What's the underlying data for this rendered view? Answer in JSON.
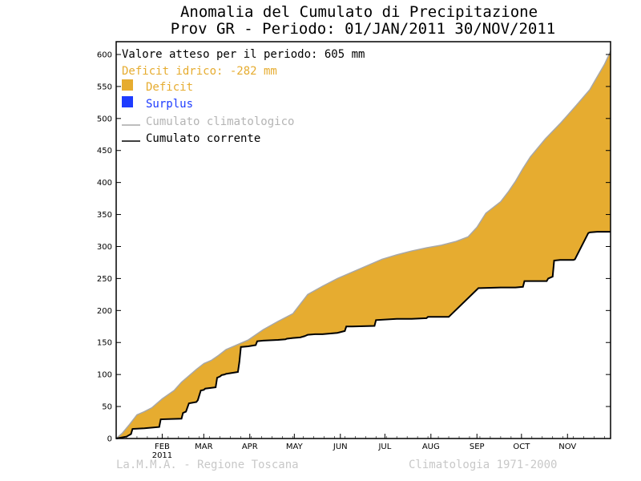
{
  "chart_data": {
    "type": "area",
    "title": "Anomalia del Cumulato di Precipitazione",
    "subtitle": "Prov GR - Periodo: 01/JAN/2011 30/NOV/2011",
    "legend": {
      "expected": "Valore atteso per il periodo: 605 mm",
      "deficit_text": "Deficit idrico: -282 mm",
      "deficit_label": "Deficit",
      "surplus_label": "Surplus",
      "climatological_label": "Cumulato climatologico",
      "current_label": "Cumulato corrente",
      "placement": "top-left"
    },
    "ylim": [
      0,
      620
    ],
    "yticks": [
      0,
      50,
      100,
      150,
      200,
      250,
      300,
      350,
      400,
      450,
      500,
      550,
      600
    ],
    "xlim": [
      1,
      334
    ],
    "xticks": [
      {
        "day": 32,
        "label": "FEB"
      },
      {
        "day": 60,
        "label": "MAR"
      },
      {
        "day": 91,
        "label": "APR"
      },
      {
        "day": 121,
        "label": "MAY"
      },
      {
        "day": 152,
        "label": "JUN"
      },
      {
        "day": 182,
        "label": "JUL"
      },
      {
        "day": 213,
        "label": "AUG"
      },
      {
        "day": 244,
        "label": "SEP"
      },
      {
        "day": 274,
        "label": "OCT"
      },
      {
        "day": 305,
        "label": "NOV"
      }
    ],
    "year_label": "2011",
    "series": [
      {
        "name": "Cumulato climatologico",
        "x": [
          1,
          5,
          10,
          15,
          20,
          25,
          32,
          40,
          45,
          50,
          55,
          60,
          65,
          70,
          75,
          80,
          82,
          90,
          95,
          100,
          110,
          120,
          125,
          130,
          140,
          150,
          160,
          170,
          180,
          190,
          200,
          210,
          220,
          230,
          238,
          244,
          250,
          260,
          265,
          270,
          275,
          280,
          290,
          300,
          305,
          310,
          320,
          325,
          330,
          334
        ],
        "y": [
          0,
          8,
          22,
          37,
          42,
          48,
          62,
          75,
          88,
          98,
          108,
          117,
          122,
          130,
          139,
          144,
          146,
          154,
          162,
          170,
          183,
          195,
          210,
          225,
          238,
          250,
          260,
          270,
          280,
          287,
          293,
          298,
          302,
          308,
          315,
          330,
          352,
          370,
          385,
          402,
          422,
          440,
          468,
          492,
          505,
          518,
          545,
          565,
          585,
          605
        ]
      },
      {
        "name": "Cumulato corrente",
        "x": [
          1,
          8,
          11,
          12,
          20,
          30,
          31,
          45,
          46,
          48,
          50,
          55,
          56,
          58,
          60,
          61,
          68,
          69,
          71,
          72,
          74,
          75,
          83,
          84,
          85,
          90,
          95,
          96,
          100,
          110,
          115,
          116,
          120,
          125,
          128,
          130,
          135,
          140,
          150,
          155,
          156,
          160,
          175,
          176,
          190,
          200,
          210,
          211,
          225,
          245,
          246,
          260,
          270,
          275,
          276,
          291,
          292,
          295,
          296,
          300,
          309,
          310,
          319,
          320,
          325,
          334
        ],
        "y": [
          0,
          3,
          7,
          15,
          16,
          18,
          30,
          31,
          40,
          42,
          55,
          57,
          60,
          75,
          76,
          78,
          80,
          95,
          97,
          99,
          100,
          101,
          104,
          120,
          143,
          144,
          146,
          152,
          153,
          154,
          155,
          156,
          157,
          158,
          160,
          162,
          163,
          163,
          165,
          168,
          175,
          175,
          176,
          185,
          187,
          187,
          188,
          190,
          190,
          235,
          235,
          236,
          236,
          237,
          246,
          246,
          250,
          253,
          278,
          279,
          279,
          280,
          321,
          322,
          323,
          323
        ]
      }
    ],
    "colors": {
      "deficit": "#E6AC30",
      "surplus": "#1E3CFF",
      "climatological": "#A8A8A8",
      "current": "#000000",
      "footer": "#C8C8C8"
    }
  },
  "footer": {
    "left": "La.M.M.A. - Regione Toscana",
    "right": "Climatologia 1971-2000"
  }
}
